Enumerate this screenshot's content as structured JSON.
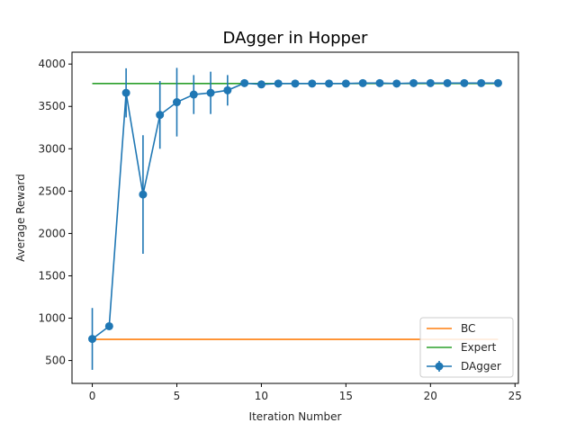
{
  "chart_data": {
    "type": "line",
    "title": "DAgger in Hopper",
    "xlabel": "Iteration Number",
    "ylabel": "Average Reward",
    "xlim": [
      -1.2,
      25.2
    ],
    "ylim": [
      230,
      4140
    ],
    "xticks": [
      0,
      5,
      10,
      15,
      20,
      25
    ],
    "yticks": [
      500,
      1000,
      1500,
      2000,
      2500,
      3000,
      3500,
      4000
    ],
    "grid": false,
    "legend_position": "lower-right",
    "series": [
      {
        "name": "BC",
        "kind": "line",
        "color": "#ff7f0e",
        "x": [
          0,
          24
        ],
        "y": [
          750,
          750
        ]
      },
      {
        "name": "Expert",
        "kind": "line",
        "color": "#2ca02c",
        "x": [
          0,
          24
        ],
        "y": [
          3770,
          3770
        ]
      },
      {
        "name": "DAgger",
        "kind": "errorbar",
        "color": "#1f77b4",
        "x": [
          0,
          1,
          2,
          3,
          4,
          5,
          6,
          7,
          8,
          9,
          10,
          11,
          12,
          13,
          14,
          15,
          16,
          17,
          18,
          19,
          20,
          21,
          22,
          23,
          24
        ],
        "y": [
          755,
          905,
          3660,
          2460,
          3400,
          3550,
          3640,
          3660,
          3690,
          3775,
          3760,
          3770,
          3770,
          3770,
          3770,
          3770,
          3775,
          3775,
          3770,
          3775,
          3775,
          3775,
          3775,
          3775,
          3775
        ],
        "yerr": [
          365,
          0,
          290,
          700,
          400,
          405,
          230,
          250,
          180,
          0,
          0,
          0,
          0,
          0,
          0,
          0,
          0,
          0,
          0,
          0,
          0,
          0,
          0,
          0,
          0
        ]
      }
    ]
  }
}
